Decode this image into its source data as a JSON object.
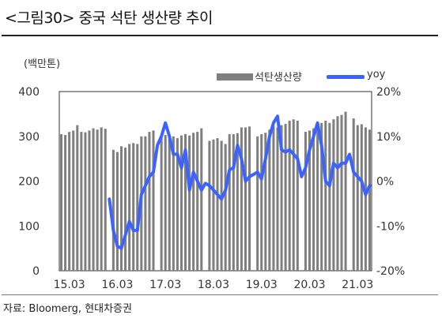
{
  "title": "<그림30> 중국 석탄 생산량 추이",
  "source": "자료: Bloomerg, 현대차증권",
  "colors": {
    "bar": "#7f7f7f",
    "line": "#3d63ff",
    "frame": "#333333"
  },
  "chart_data": {
    "type": "bar+line",
    "unit_label": "(백만톤)",
    "x_tick_labels": [
      "15.03",
      "16.03",
      "17.03",
      "18.03",
      "19.03",
      "20.03",
      "21.03"
    ],
    "x_start": "2015-01",
    "y_left": {
      "min": 0,
      "max": 400,
      "ticks": [
        0,
        100,
        200,
        300,
        400
      ]
    },
    "y_right": {
      "min": -20,
      "max": 20,
      "ticks": [
        "-20%",
        "-10%",
        "0%",
        "10%",
        "20%"
      ],
      "tick_values": [
        -20,
        -10,
        0,
        10,
        20
      ]
    },
    "legend": [
      "석탄생산량",
      "yoy"
    ],
    "series": [
      {
        "name": "석탄생산량",
        "type": "bar",
        "axis": "left",
        "values": [
          305,
          303,
          310,
          313,
          325,
          310,
          309,
          313,
          318,
          315,
          320,
          317,
          null,
          270,
          265,
          278,
          275,
          283,
          285,
          283,
          300,
          300,
          310,
          313,
          null,
          300,
          303,
          298,
          300,
          296,
          302,
          305,
          302,
          308,
          310,
          318,
          null,
          290,
          293,
          296,
          290,
          283,
          305,
          305,
          307,
          320,
          320,
          322,
          null,
          300,
          305,
          308,
          315,
          323,
          320,
          325,
          328,
          335,
          338,
          335,
          null,
          310,
          313,
          318,
          323,
          330,
          335,
          330,
          338,
          345,
          348,
          355,
          null,
          340,
          325,
          327,
          320,
          315
        ]
      },
      {
        "name": "yoy",
        "type": "line",
        "axis": "right",
        "values": [
          null,
          null,
          null,
          null,
          null,
          null,
          null,
          null,
          null,
          null,
          null,
          null,
          -4,
          -11,
          -14.5,
          -15,
          -12,
          -9,
          -11,
          -11,
          -3,
          -1,
          1,
          2,
          8,
          10,
          13,
          10,
          6,
          6,
          3,
          7,
          -2,
          2,
          0,
          -2,
          -0.5,
          -1,
          -2,
          -3,
          -4,
          -2,
          2.5,
          3,
          8,
          5,
          0,
          1,
          1.5,
          2,
          0.5,
          5,
          10,
          13,
          14.5,
          7,
          6.5,
          7,
          6,
          5,
          1,
          3,
          7,
          10,
          13,
          8,
          0,
          -1,
          4,
          3,
          4,
          4,
          6,
          2,
          1,
          0,
          -3,
          -1
        ]
      }
    ]
  }
}
